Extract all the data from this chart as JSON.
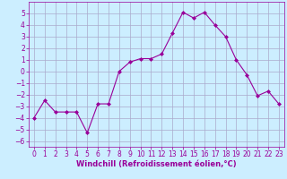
{
  "x": [
    0,
    1,
    2,
    3,
    4,
    5,
    6,
    7,
    8,
    9,
    10,
    11,
    12,
    13,
    14,
    15,
    16,
    17,
    18,
    19,
    20,
    21,
    22,
    23
  ],
  "y": [
    -4.0,
    -2.5,
    -3.5,
    -3.5,
    -3.5,
    -5.3,
    -2.8,
    -2.8,
    0.0,
    0.8,
    1.1,
    1.1,
    1.5,
    3.3,
    5.1,
    4.6,
    5.1,
    4.0,
    3.0,
    1.0,
    -0.3,
    -2.1,
    -1.7,
    -2.8
  ],
  "line_color": "#990099",
  "marker": "D",
  "marker_size": 2,
  "bg_color": "#cceeff",
  "grid_color": "#aaaacc",
  "xlabel": "Windchill (Refroidissement éolien,°C)",
  "xlabel_fontsize": 6,
  "xlabel_color": "#990099",
  "tick_color": "#990099",
  "tick_fontsize": 5.5,
  "ylim": [
    -6.5,
    6.0
  ],
  "yticks": [
    -6,
    -5,
    -4,
    -3,
    -2,
    -1,
    0,
    1,
    2,
    3,
    4,
    5
  ],
  "xlim": [
    -0.5,
    23.5
  ],
  "xticks": [
    0,
    1,
    2,
    3,
    4,
    5,
    6,
    7,
    8,
    9,
    10,
    11,
    12,
    13,
    14,
    15,
    16,
    17,
    18,
    19,
    20,
    21,
    22,
    23
  ]
}
